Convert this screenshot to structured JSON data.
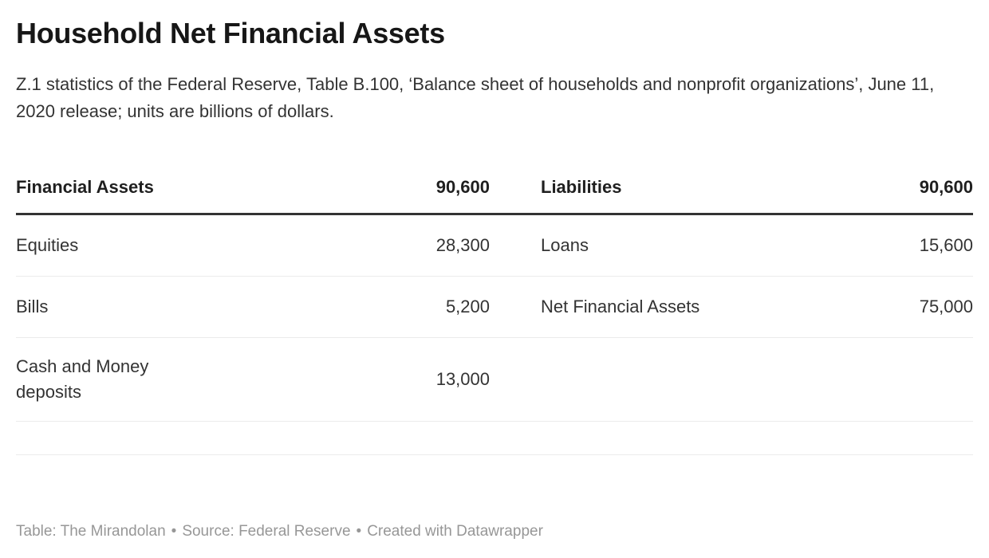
{
  "header": {
    "title": "Household Net Financial Assets",
    "description": "Z.1 statistics of the Federal Reserve, Table B.100, ‘Balance sheet of households and nonprofit organizations’, June 11, 2020 release; units are billions of dollars."
  },
  "chart_data": {
    "type": "table",
    "title": "Household Net Financial Assets",
    "units": "billions of dollars",
    "columns": [
      "Financial Assets",
      "90,600",
      "Liabilities",
      "90,600"
    ],
    "rows": [
      [
        "Equities",
        "28,300",
        "Loans",
        "15,600"
      ],
      [
        "Bills",
        "5,200",
        "Net Financial Assets",
        "75,000"
      ],
      [
        "Cash and Money deposits",
        "13,000",
        "",
        ""
      ],
      [
        "",
        "",
        "",
        ""
      ]
    ]
  },
  "colors": {
    "title": "#171717",
    "body_text": "#333333",
    "header_rule": "#333333",
    "row_divider": "#ebebeb",
    "footer_text": "#979797"
  },
  "footer": {
    "table_credit": "Table: The Mirandolan",
    "separator": "•",
    "source_credit": "Source: Federal Reserve",
    "created_credit": "Created with Datawrapper"
  }
}
